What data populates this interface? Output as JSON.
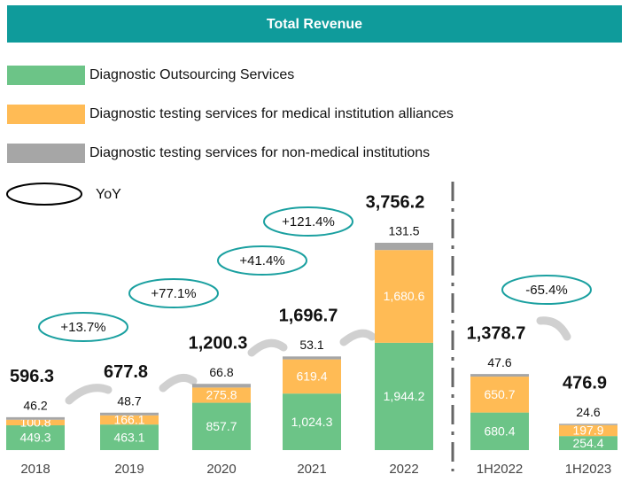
{
  "chart_data": {
    "type": "stacked_bar",
    "title": "Total Revenue",
    "categories": [
      "2018",
      "2019",
      "2020",
      "2021",
      "2022",
      "1H2022",
      "1H2023"
    ],
    "series": [
      {
        "name": "Diagnostic Outsourcing Services",
        "color": "#6cc487",
        "values": [
          449.3,
          463.1,
          857.7,
          1024.3,
          1944.2,
          680.4,
          254.4
        ],
        "value_labels": [
          "449.3",
          "463.1",
          "857.7",
          "1,024.3",
          "1,944.2",
          "680.4",
          "254.4"
        ]
      },
      {
        "name": "Diagnostic testing services for medical institution alliances",
        "color": "#ffbb55",
        "values": [
          100.8,
          166.1,
          275.8,
          619.4,
          1680.6,
          650.7,
          197.9
        ],
        "value_labels": [
          "100.8",
          "166.1",
          "275.8",
          "619.4",
          "1,680.6",
          "650.7",
          "197.9"
        ]
      },
      {
        "name": "Diagnostic testing services for non-medical institutions",
        "color": "#a6a6a6",
        "values": [
          46.2,
          48.7,
          66.8,
          53.1,
          131.5,
          47.6,
          24.6
        ],
        "value_labels": [
          "46.2",
          "48.7",
          "66.8",
          "53.1",
          "131.5",
          "47.6",
          "24.6"
        ]
      }
    ],
    "totals": {
      "values": [
        596.3,
        677.8,
        1200.3,
        1696.7,
        3756.2,
        1378.7,
        476.9
      ],
      "value_labels": [
        "596.3",
        "677.8",
        "1,200.3",
        "1,696.7",
        "3,756.2",
        "1,378.7",
        "476.9"
      ]
    },
    "yoy_legend": "YoY",
    "yoy": {
      "values": [
        13.7,
        77.1,
        41.4,
        121.4,
        -65.4
      ],
      "value_labels": [
        "+13.7%",
        "+77.1%",
        "+41.4%",
        "+121.4%",
        "-65.4%"
      ]
    }
  }
}
